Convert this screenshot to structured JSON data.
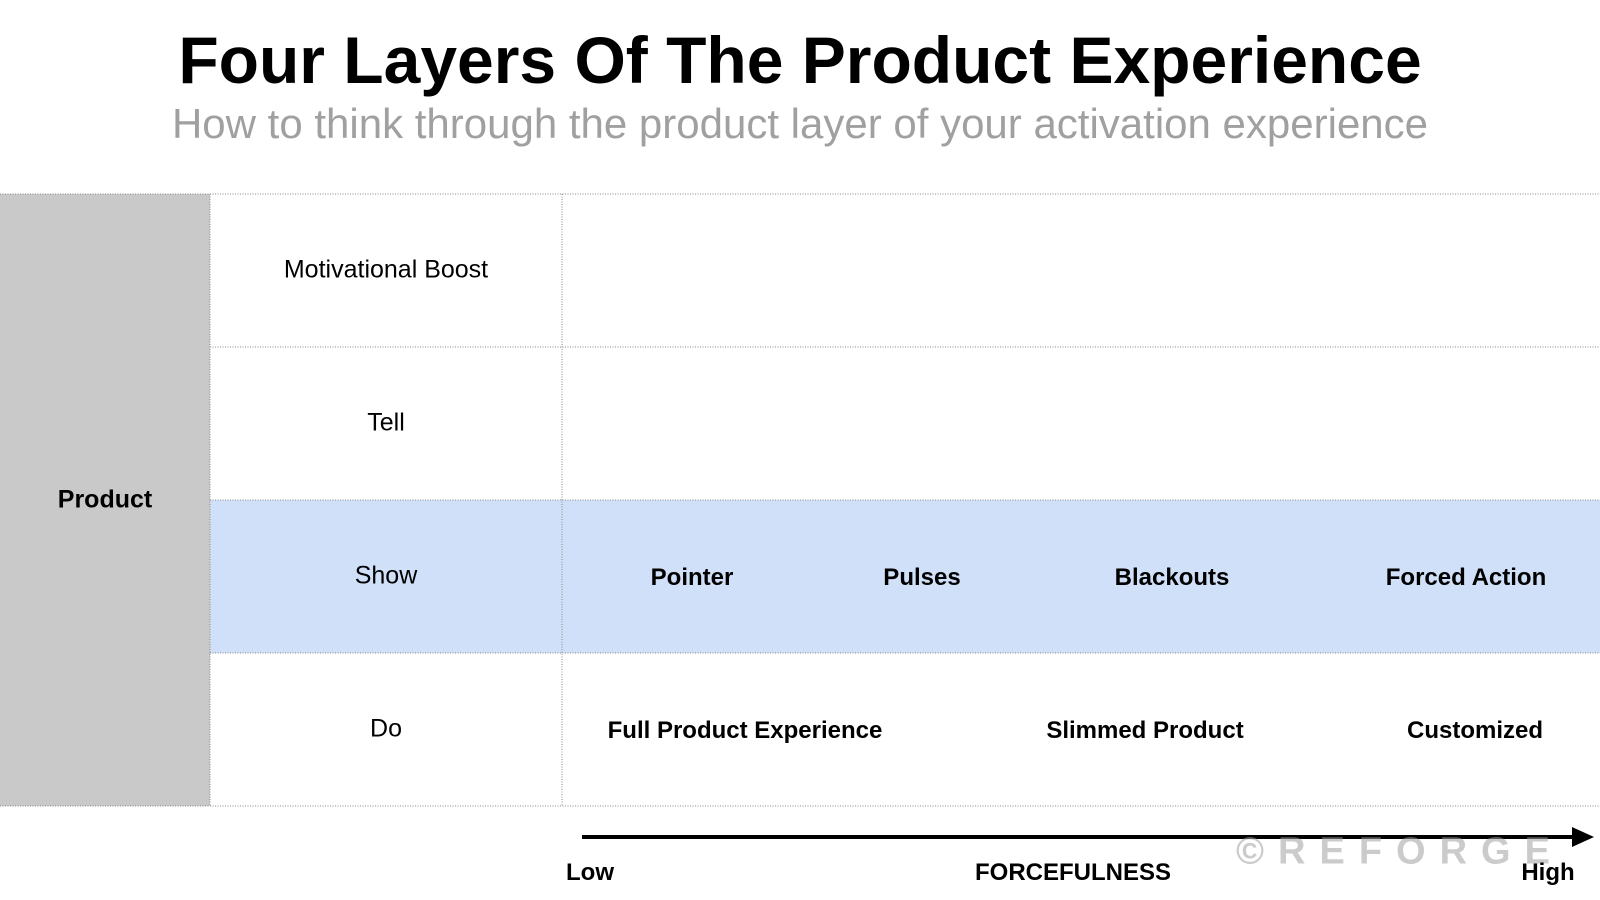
{
  "header": {
    "title": "Four Layers Of The Product Experience",
    "subtitle": "How to think through the product layer of your activation experience"
  },
  "grid": {
    "side_label": "Product",
    "rows": [
      {
        "label": "Motivational Boost",
        "items": []
      },
      {
        "label": "Tell",
        "items": []
      },
      {
        "label": "Show",
        "items": [
          "Pointer",
          "Pulses",
          "Blackouts",
          "Forced Action"
        ]
      },
      {
        "label": "Do",
        "items": [
          "Full Product Experience",
          "Slimmed Product",
          "Customized"
        ]
      }
    ]
  },
  "axis": {
    "low": "Low",
    "label": "FORCEFULNESS",
    "high": "High"
  },
  "watermark": "©REFORGE"
}
